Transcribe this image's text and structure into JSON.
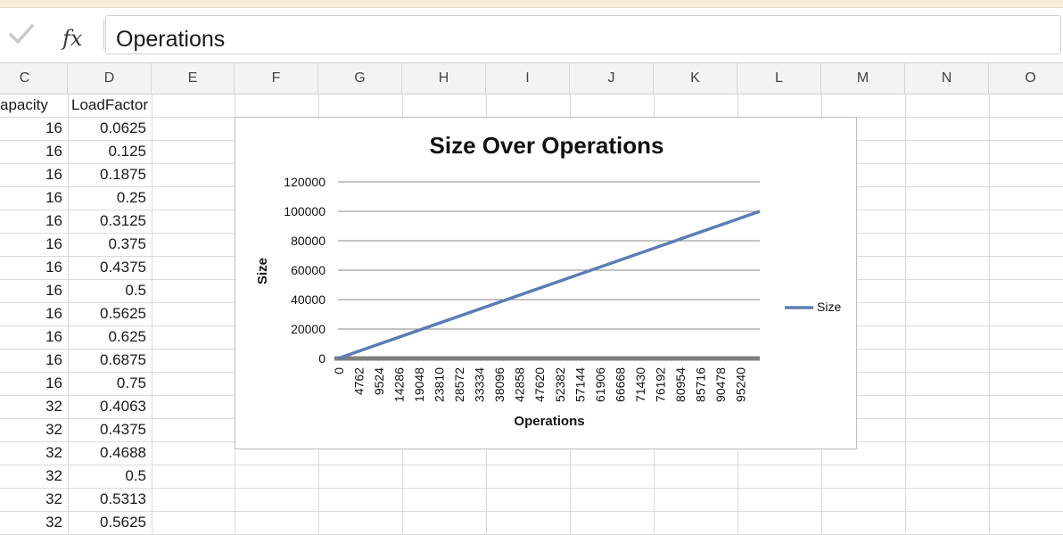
{
  "formula_bar": {
    "value": "Operations",
    "check_icon": "check-icon",
    "fx_icon": "fx-icon",
    "fx_label": "fx"
  },
  "columns": [
    "C",
    "D",
    "E",
    "F",
    "G",
    "H",
    "I",
    "J",
    "K",
    "L",
    "M",
    "N",
    "O"
  ],
  "sheet": {
    "headers": {
      "c": "apacity",
      "d": "LoadFactor"
    },
    "rows": [
      {
        "capacity": "16",
        "load_factor": "0.0625"
      },
      {
        "capacity": "16",
        "load_factor": "0.125"
      },
      {
        "capacity": "16",
        "load_factor": "0.1875"
      },
      {
        "capacity": "16",
        "load_factor": "0.25"
      },
      {
        "capacity": "16",
        "load_factor": "0.3125"
      },
      {
        "capacity": "16",
        "load_factor": "0.375"
      },
      {
        "capacity": "16",
        "load_factor": "0.4375"
      },
      {
        "capacity": "16",
        "load_factor": "0.5"
      },
      {
        "capacity": "16",
        "load_factor": "0.5625"
      },
      {
        "capacity": "16",
        "load_factor": "0.625"
      },
      {
        "capacity": "16",
        "load_factor": "0.6875"
      },
      {
        "capacity": "16",
        "load_factor": "0.75"
      },
      {
        "capacity": "32",
        "load_factor": "0.4063"
      },
      {
        "capacity": "32",
        "load_factor": "0.4375"
      },
      {
        "capacity": "32",
        "load_factor": "0.4688"
      },
      {
        "capacity": "32",
        "load_factor": "0.5"
      },
      {
        "capacity": "32",
        "load_factor": "0.5313"
      },
      {
        "capacity": "32",
        "load_factor": "0.5625"
      }
    ]
  },
  "chart_data": {
    "type": "line",
    "title": "Size Over Operations",
    "xlabel": "Operations",
    "ylabel": "Size",
    "x_ticks": [
      "0",
      "4762",
      "9524",
      "14286",
      "19048",
      "23810",
      "28572",
      "33334",
      "38096",
      "42858",
      "47620",
      "52382",
      "57144",
      "61906",
      "66668",
      "71430",
      "76192",
      "80954",
      "85716",
      "90478",
      "95240"
    ],
    "y_ticks": [
      "0",
      "20000",
      "40000",
      "60000",
      "80000",
      "100000",
      "120000"
    ],
    "xlim": [
      0,
      100000
    ],
    "ylim": [
      0,
      120000
    ],
    "grid": true,
    "legend_position": "right",
    "series": [
      {
        "name": "Size",
        "color": "#5b7db5",
        "x": [
          0,
          100000
        ],
        "y": [
          0,
          100000
        ]
      }
    ]
  }
}
